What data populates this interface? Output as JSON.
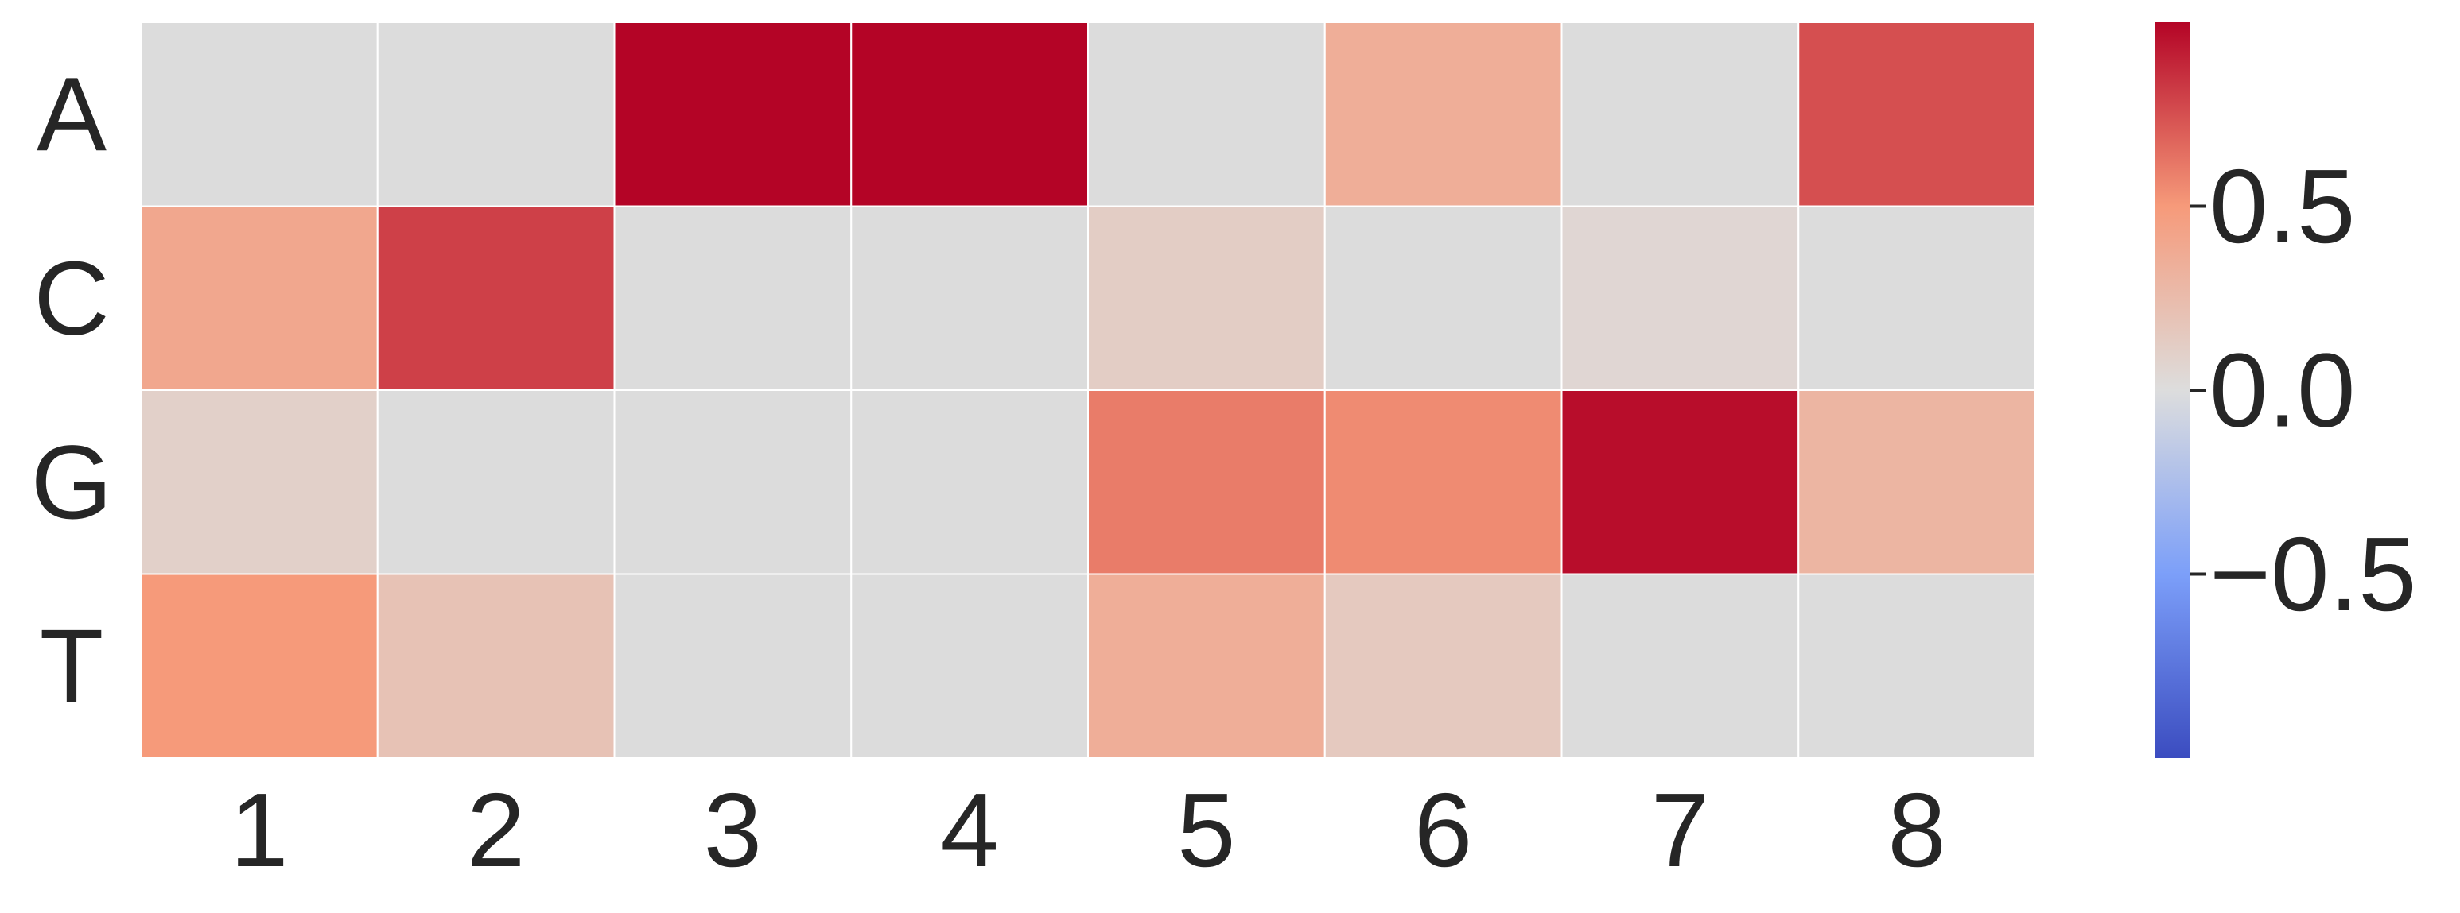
{
  "chart_data": {
    "type": "heatmap",
    "title": "",
    "xlabel": "",
    "ylabel": "",
    "x_categories": [
      "1",
      "2",
      "3",
      "4",
      "5",
      "6",
      "7",
      "8"
    ],
    "y_categories": [
      "A",
      "C",
      "G",
      "T"
    ],
    "values": [
      [
        0.0,
        0.0,
        1.0,
        1.0,
        0.0,
        0.35,
        0.0,
        0.75
      ],
      [
        0.4,
        0.8,
        0.0,
        0.0,
        0.12,
        0.0,
        0.05,
        0.0
      ],
      [
        0.1,
        0.0,
        0.0,
        0.0,
        0.6,
        0.55,
        0.97,
        0.3
      ],
      [
        0.5,
        0.2,
        0.0,
        0.0,
        0.35,
        0.15,
        0.0,
        0.0
      ]
    ],
    "mask_value_color": "#dcdcdc",
    "colormap": "coolwarm",
    "vmin": -1.0,
    "vmax": 1.0,
    "colorbar": {
      "ticks": [
        0.5,
        0.0,
        -0.5
      ],
      "tick_labels": [
        "0.5",
        "0.0",
        "−0.5"
      ]
    },
    "grid": false,
    "cell_border_color": "#ffffff"
  }
}
